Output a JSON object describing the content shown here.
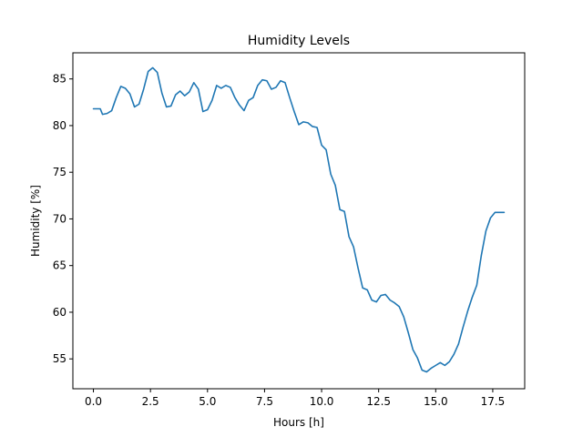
{
  "chart_data": {
    "type": "line",
    "title": "Humidity Levels",
    "xlabel": "Hours [h]",
    "ylabel": "Humidity [%]",
    "xlim": [
      -0.9,
      18.9
    ],
    "ylim": [
      51.8,
      87.8
    ],
    "xticks": [
      0.0,
      2.5,
      5.0,
      7.5,
      10.0,
      12.5,
      15.0,
      17.5
    ],
    "xtick_labels": [
      "0.0",
      "2.5",
      "5.0",
      "7.5",
      "10.0",
      "12.5",
      "15.0",
      "17.5"
    ],
    "yticks": [
      55,
      60,
      65,
      70,
      75,
      80,
      85
    ],
    "ytick_labels": [
      "55",
      "60",
      "65",
      "70",
      "75",
      "80",
      "85"
    ],
    "grid": false,
    "legend": "none",
    "series": [
      {
        "color": "#1f77b4",
        "x": [
          0.0,
          0.3,
          0.4,
          0.6,
          0.8,
          1.0,
          1.2,
          1.4,
          1.6,
          1.8,
          2.0,
          2.2,
          2.4,
          2.6,
          2.8,
          3.0,
          3.2,
          3.4,
          3.6,
          3.8,
          4.0,
          4.2,
          4.4,
          4.6,
          4.8,
          5.0,
          5.2,
          5.4,
          5.6,
          5.8,
          6.0,
          6.2,
          6.4,
          6.6,
          6.8,
          7.0,
          7.2,
          7.4,
          7.6,
          7.8,
          8.0,
          8.2,
          8.4,
          8.6,
          8.8,
          9.0,
          9.2,
          9.4,
          9.6,
          9.8,
          10.0,
          10.2,
          10.4,
          10.6,
          10.8,
          11.0,
          11.2,
          11.4,
          11.6,
          11.8,
          12.0,
          12.2,
          12.4,
          12.6,
          12.8,
          13.0,
          13.2,
          13.4,
          13.6,
          13.8,
          14.0,
          14.2,
          14.4,
          14.6,
          14.8,
          15.0,
          15.2,
          15.4,
          15.6,
          15.8,
          16.0,
          16.2,
          16.4,
          16.6,
          16.8,
          17.0,
          17.2,
          17.4,
          17.6,
          17.8,
          18.0
        ],
        "y": [
          81.8,
          81.8,
          81.2,
          81.3,
          81.6,
          83.0,
          84.2,
          84.0,
          83.4,
          82.0,
          82.3,
          83.9,
          85.8,
          86.2,
          85.7,
          83.5,
          82.0,
          82.1,
          83.3,
          83.7,
          83.2,
          83.6,
          84.6,
          83.9,
          81.5,
          81.7,
          82.7,
          84.3,
          84.0,
          84.3,
          84.1,
          83.0,
          82.2,
          81.6,
          82.7,
          83.0,
          84.3,
          84.9,
          84.8,
          83.9,
          84.1,
          84.8,
          84.6,
          83.0,
          81.5,
          80.1,
          80.4,
          80.3,
          79.9,
          79.8,
          77.9,
          77.4,
          74.8,
          73.6,
          71.0,
          70.8,
          68.1,
          67.0,
          64.7,
          62.6,
          62.4,
          61.3,
          61.1,
          61.8,
          61.9,
          61.3,
          61.0,
          60.6,
          59.5,
          57.8,
          56.0,
          55.1,
          53.8,
          53.6,
          54.0,
          54.3,
          54.6,
          54.3,
          54.7,
          55.5,
          56.6,
          58.4,
          60.1,
          61.6,
          62.9,
          66.1,
          68.7,
          70.1,
          70.7,
          70.7,
          70.7
        ]
      }
    ]
  }
}
